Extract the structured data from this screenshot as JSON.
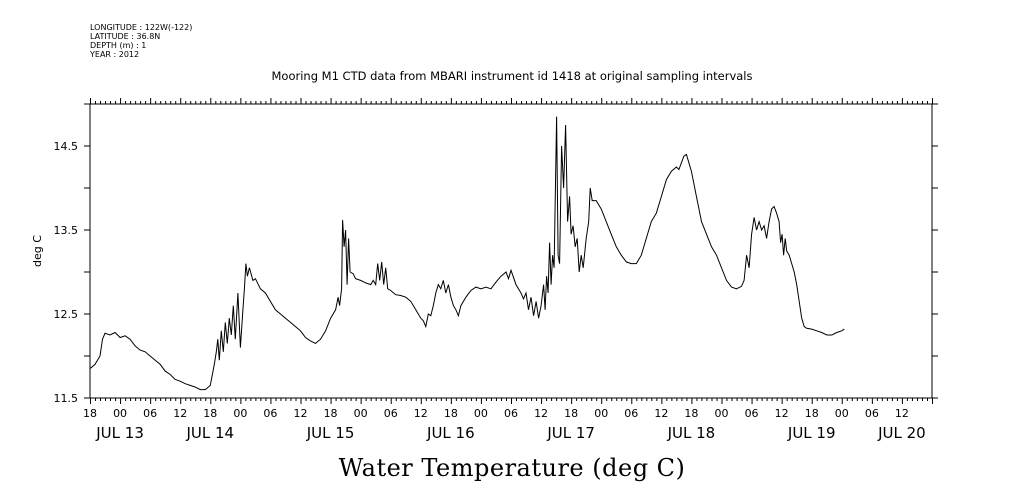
{
  "header": {
    "meta_lines": [
      "LONGITUDE : 122W(-122)",
      "LATITUDE : 36.8N",
      "DEPTH (m) : 1",
      "YEAR : 2012"
    ],
    "title": "Mooring M1 CTD data from MBARI instrument id 1418 at original sampling intervals"
  },
  "chart_data": {
    "type": "line",
    "title": "Mooring M1 CTD data from MBARI instrument id 1418 at original sampling intervals",
    "xlabel": "Water Temperature (deg C)",
    "ylabel": "deg C",
    "x_units": "hours since 2012-07-12 18:00",
    "xlim": [
      0,
      168
    ],
    "ylim": [
      11.5,
      15.0
    ],
    "grid": false,
    "y_ticks": [
      11.5,
      12.5,
      13.5,
      14.5
    ],
    "y_tick_labels": [
      "11.5",
      "12.5",
      "13.5",
      "14.5"
    ],
    "x_hour_labels": [
      "18",
      "00",
      "06",
      "12",
      "18",
      "00",
      "06",
      "12",
      "18",
      "00",
      "06",
      "12",
      "18",
      "00",
      "06",
      "12",
      "18",
      "00",
      "06",
      "12",
      "18",
      "00",
      "06",
      "12",
      "18",
      "00",
      "06",
      "12"
    ],
    "x_date_labels": [
      {
        "text": "JUL 13",
        "x": 6
      },
      {
        "text": "JUL 14",
        "x": 24
      },
      {
        "text": "JUL 15",
        "x": 48
      },
      {
        "text": "JUL 16",
        "x": 72
      },
      {
        "text": "JUL 17",
        "x": 96
      },
      {
        "text": "JUL 18",
        "x": 120
      },
      {
        "text": "JUL 19",
        "x": 144
      },
      {
        "text": "JUL 20",
        "x": 162
      }
    ],
    "series": [
      {
        "values": [
          [
            0,
            11.85
          ],
          [
            1,
            11.9
          ],
          [
            2,
            12.0
          ],
          [
            2.5,
            12.2
          ],
          [
            3,
            12.27
          ],
          [
            4,
            12.25
          ],
          [
            5,
            12.28
          ],
          [
            6,
            12.22
          ],
          [
            7,
            12.24
          ],
          [
            8,
            12.2
          ],
          [
            9,
            12.12
          ],
          [
            10,
            12.07
          ],
          [
            11,
            12.05
          ],
          [
            12,
            12.0
          ],
          [
            13,
            11.95
          ],
          [
            14,
            11.9
          ],
          [
            15,
            11.82
          ],
          [
            16,
            11.78
          ],
          [
            17,
            11.72
          ],
          [
            18,
            11.7
          ],
          [
            19,
            11.67
          ],
          [
            20,
            11.65
          ],
          [
            21,
            11.63
          ],
          [
            22,
            11.6
          ],
          [
            23,
            11.6
          ],
          [
            24,
            11.65
          ],
          [
            24.8,
            11.9
          ],
          [
            25.2,
            12.05
          ],
          [
            25.5,
            12.2
          ],
          [
            25.8,
            11.95
          ],
          [
            26.2,
            12.3
          ],
          [
            26.6,
            12.05
          ],
          [
            27,
            12.4
          ],
          [
            27.4,
            12.15
          ],
          [
            27.8,
            12.45
          ],
          [
            28.2,
            12.25
          ],
          [
            28.6,
            12.6
          ],
          [
            29,
            12.2
          ],
          [
            29.5,
            12.75
          ],
          [
            30,
            12.1
          ],
          [
            30.5,
            12.55
          ],
          [
            30.8,
            12.8
          ],
          [
            31.1,
            13.1
          ],
          [
            31.4,
            12.95
          ],
          [
            31.8,
            13.05
          ],
          [
            32.5,
            12.9
          ],
          [
            33,
            12.92
          ],
          [
            34,
            12.8
          ],
          [
            35,
            12.75
          ],
          [
            36,
            12.65
          ],
          [
            37,
            12.55
          ],
          [
            38,
            12.5
          ],
          [
            39,
            12.45
          ],
          [
            40,
            12.4
          ],
          [
            41,
            12.35
          ],
          [
            42,
            12.3
          ],
          [
            43,
            12.22
          ],
          [
            44,
            12.18
          ],
          [
            45,
            12.15
          ],
          [
            46,
            12.2
          ],
          [
            47,
            12.3
          ],
          [
            48,
            12.45
          ],
          [
            49,
            12.55
          ],
          [
            49.5,
            12.7
          ],
          [
            49.8,
            12.6
          ],
          [
            50.2,
            12.8
          ],
          [
            50.4,
            13.62
          ],
          [
            50.7,
            13.3
          ],
          [
            51,
            13.5
          ],
          [
            51.3,
            12.85
          ],
          [
            51.6,
            13.4
          ],
          [
            51.9,
            13.0
          ],
          [
            52.5,
            12.98
          ],
          [
            53,
            12.92
          ],
          [
            54,
            12.9
          ],
          [
            55,
            12.87
          ],
          [
            56,
            12.85
          ],
          [
            56.5,
            12.9
          ],
          [
            57,
            12.85
          ],
          [
            57.4,
            13.1
          ],
          [
            57.8,
            12.9
          ],
          [
            58.2,
            13.12
          ],
          [
            58.6,
            12.85
          ],
          [
            59,
            13.05
          ],
          [
            59.4,
            12.8
          ],
          [
            60,
            12.78
          ],
          [
            61,
            12.73
          ],
          [
            62,
            12.72
          ],
          [
            63,
            12.7
          ],
          [
            64,
            12.65
          ],
          [
            65,
            12.55
          ],
          [
            66,
            12.45
          ],
          [
            66.5,
            12.42
          ],
          [
            67,
            12.35
          ],
          [
            67.5,
            12.5
          ],
          [
            68,
            12.48
          ],
          [
            68.5,
            12.6
          ],
          [
            69,
            12.75
          ],
          [
            69.5,
            12.85
          ],
          [
            70,
            12.8
          ],
          [
            70.5,
            12.9
          ],
          [
            71,
            12.75
          ],
          [
            71.5,
            12.85
          ],
          [
            72,
            12.7
          ],
          [
            72.5,
            12.6
          ],
          [
            73,
            12.55
          ],
          [
            73.5,
            12.48
          ],
          [
            74,
            12.6
          ],
          [
            75,
            12.7
          ],
          [
            76,
            12.78
          ],
          [
            77,
            12.82
          ],
          [
            78,
            12.8
          ],
          [
            79,
            12.82
          ],
          [
            80,
            12.8
          ],
          [
            81,
            12.88
          ],
          [
            82,
            12.95
          ],
          [
            83,
            13.0
          ],
          [
            83.5,
            12.92
          ],
          [
            84,
            13.02
          ],
          [
            85,
            12.85
          ],
          [
            86,
            12.75
          ],
          [
            86.5,
            12.68
          ],
          [
            87,
            12.75
          ],
          [
            87.5,
            12.55
          ],
          [
            88,
            12.7
          ],
          [
            88.5,
            12.48
          ],
          [
            89,
            12.65
          ],
          [
            89.5,
            12.45
          ],
          [
            90,
            12.6
          ],
          [
            90.5,
            12.85
          ],
          [
            90.8,
            12.55
          ],
          [
            91.1,
            12.95
          ],
          [
            91.4,
            12.75
          ],
          [
            91.7,
            13.35
          ],
          [
            92,
            12.85
          ],
          [
            92.3,
            13.2
          ],
          [
            92.6,
            13.05
          ],
          [
            93.1,
            14.85
          ],
          [
            93.4,
            13.2
          ],
          [
            93.7,
            13.1
          ],
          [
            94.1,
            14.5
          ],
          [
            94.5,
            14.0
          ],
          [
            94.9,
            14.75
          ],
          [
            95.3,
            13.6
          ],
          [
            95.7,
            13.9
          ],
          [
            96,
            13.45
          ],
          [
            96.4,
            13.55
          ],
          [
            96.8,
            13.3
          ],
          [
            97.2,
            13.4
          ],
          [
            97.6,
            13.0
          ],
          [
            98,
            13.2
          ],
          [
            98.4,
            13.05
          ],
          [
            99,
            13.4
          ],
          [
            99.5,
            13.6
          ],
          [
            99.8,
            14.0
          ],
          [
            100.2,
            13.85
          ],
          [
            101,
            13.85
          ],
          [
            102,
            13.75
          ],
          [
            103,
            13.6
          ],
          [
            104,
            13.45
          ],
          [
            105,
            13.3
          ],
          [
            106,
            13.2
          ],
          [
            107,
            13.12
          ],
          [
            108,
            13.1
          ],
          [
            109,
            13.1
          ],
          [
            110,
            13.2
          ],
          [
            111,
            13.4
          ],
          [
            112,
            13.6
          ],
          [
            113,
            13.7
          ],
          [
            114,
            13.9
          ],
          [
            115,
            14.1
          ],
          [
            116,
            14.2
          ],
          [
            117,
            14.25
          ],
          [
            117.5,
            14.22
          ],
          [
            118,
            14.3
          ],
          [
            118.5,
            14.38
          ],
          [
            119,
            14.4
          ],
          [
            119.5,
            14.3
          ],
          [
            120,
            14.2
          ],
          [
            121,
            13.9
          ],
          [
            122,
            13.6
          ],
          [
            123,
            13.45
          ],
          [
            124,
            13.3
          ],
          [
            125,
            13.2
          ],
          [
            126,
            13.05
          ],
          [
            127,
            12.9
          ],
          [
            128,
            12.82
          ],
          [
            129,
            12.8
          ],
          [
            130,
            12.83
          ],
          [
            130.5,
            12.9
          ],
          [
            131,
            13.2
          ],
          [
            131.5,
            13.05
          ],
          [
            132,
            13.45
          ],
          [
            132.5,
            13.65
          ],
          [
            133,
            13.5
          ],
          [
            133.5,
            13.6
          ],
          [
            134,
            13.5
          ],
          [
            134.5,
            13.55
          ],
          [
            135,
            13.4
          ],
          [
            135.5,
            13.6
          ],
          [
            136,
            13.75
          ],
          [
            136.5,
            13.78
          ],
          [
            137,
            13.7
          ],
          [
            137.5,
            13.6
          ],
          [
            137.8,
            13.35
          ],
          [
            138.1,
            13.45
          ],
          [
            138.4,
            13.2
          ],
          [
            138.7,
            13.4
          ],
          [
            139,
            13.25
          ],
          [
            139.5,
            13.2
          ],
          [
            140,
            13.1
          ],
          [
            140.5,
            13.0
          ],
          [
            141,
            12.85
          ],
          [
            141.5,
            12.65
          ],
          [
            142,
            12.45
          ],
          [
            142.5,
            12.35
          ],
          [
            143,
            12.33
          ],
          [
            144,
            12.32
          ],
          [
            145,
            12.3
          ],
          [
            146,
            12.28
          ],
          [
            147,
            12.25
          ],
          [
            148,
            12.25
          ],
          [
            149,
            12.28
          ],
          [
            150,
            12.3
          ],
          [
            150.5,
            12.32
          ]
        ]
      }
    ]
  }
}
